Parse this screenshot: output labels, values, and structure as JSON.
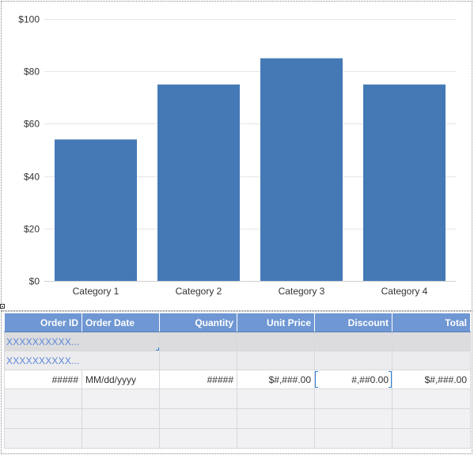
{
  "chart_data": {
    "type": "bar",
    "title": "",
    "xlabel": "",
    "ylabel": "",
    "categories": [
      "Category 1",
      "Category 2",
      "Category 3",
      "Category 4"
    ],
    "values": [
      54,
      75,
      85,
      75
    ],
    "ylim": [
      0,
      100
    ],
    "y_ticks": [
      "$0",
      "$20",
      "$40",
      "$60",
      "$80",
      "$100"
    ],
    "y_tick_values": [
      0,
      20,
      40,
      60,
      80,
      100
    ],
    "grid": true,
    "legend": "none",
    "bar_color": "#4479b6"
  },
  "table": {
    "headers": {
      "order_id": "Order ID",
      "order_date": "Order Date",
      "quantity": "Quantity",
      "unit_price": "Unit Price",
      "discount": "Discount",
      "total": "Total"
    },
    "group_rows": [
      "XXXXXXXXXX...",
      "XXXXXXXXXX..."
    ],
    "detail_row": {
      "order_id": "#####",
      "order_date": "MM/dd/yyyy",
      "quantity": "#####",
      "unit_price": "$#,###.00",
      "discount": "#,##0.00",
      "total": "$#,###.00"
    },
    "colors": {
      "header_bg": "#6f97d3",
      "group_text": "#5b87d6",
      "empty_row_bg": "#f1f0f3"
    }
  }
}
